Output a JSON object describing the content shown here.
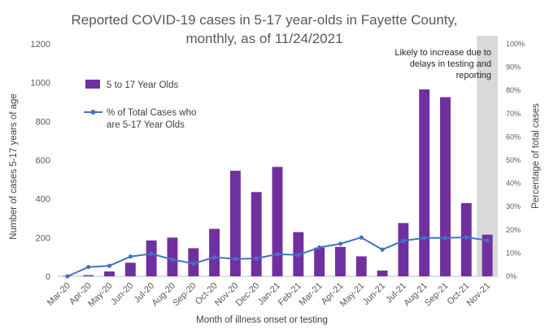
{
  "colors": {
    "bar": "#7030a0",
    "line": "#4472c4",
    "shade": "#d9d9d9",
    "axis": "#bfbfbf",
    "text": "#595959"
  },
  "chart_data": {
    "type": "bar",
    "title_lines": [
      "Reported COVID-19 cases in 5-17 year-olds in Fayette County,",
      "monthly, as of 11/24/2021"
    ],
    "xlabel": "Month of illness onset or testing",
    "ylabel": "Number of cases 5-17 years of age",
    "y2label": "Percentage of total cases",
    "ylim": [
      0,
      1200
    ],
    "y2lim": [
      0,
      1
    ],
    "yticks": [
      "0",
      "200",
      "400",
      "600",
      "800",
      "1000",
      "1200"
    ],
    "y2ticks": [
      "0%",
      "10%",
      "20%",
      "30%",
      "40%",
      "50%",
      "60%",
      "70%",
      "80%",
      "90%",
      "100%"
    ],
    "categories": [
      "Mar-20",
      "Apr-20",
      "May-20",
      "Jun-20",
      "Jul-20",
      "Aug-20",
      "Sep-20",
      "Oct-20",
      "Nov-20",
      "Dec-20",
      "Jan-21",
      "Feb-21",
      "Mar-21",
      "Apr-21",
      "May-21",
      "Jun-21",
      "Jul-21",
      "Aug-21",
      "Sep-21",
      "Oct-21",
      "Nov-21"
    ],
    "series": [
      {
        "name": "5 to 17 Year Olds",
        "kind": "bar",
        "axis": "left",
        "values": [
          2,
          6,
          25,
          70,
          185,
          200,
          145,
          245,
          545,
          435,
          565,
          228,
          148,
          152,
          103,
          30,
          275,
          965,
          925,
          378,
          215
        ]
      },
      {
        "name": "% of Total Cases who are 5-17 Year Olds",
        "legend_lines": [
          "% of Total Cases who",
          "are 5-17 Year Olds"
        ],
        "kind": "line",
        "axis": "right",
        "values": [
          0.0,
          0.04,
          0.045,
          0.085,
          0.097,
          0.072,
          0.055,
          0.082,
          0.075,
          0.077,
          0.095,
          0.092,
          0.124,
          0.14,
          0.167,
          0.115,
          0.153,
          0.165,
          0.165,
          0.168,
          0.155
        ]
      }
    ],
    "shaded_category": "Nov-21",
    "annotation_lines": [
      "Likely to increase due to",
      "delays in testing and",
      "reporting"
    ],
    "legend_position": "upper-left"
  }
}
